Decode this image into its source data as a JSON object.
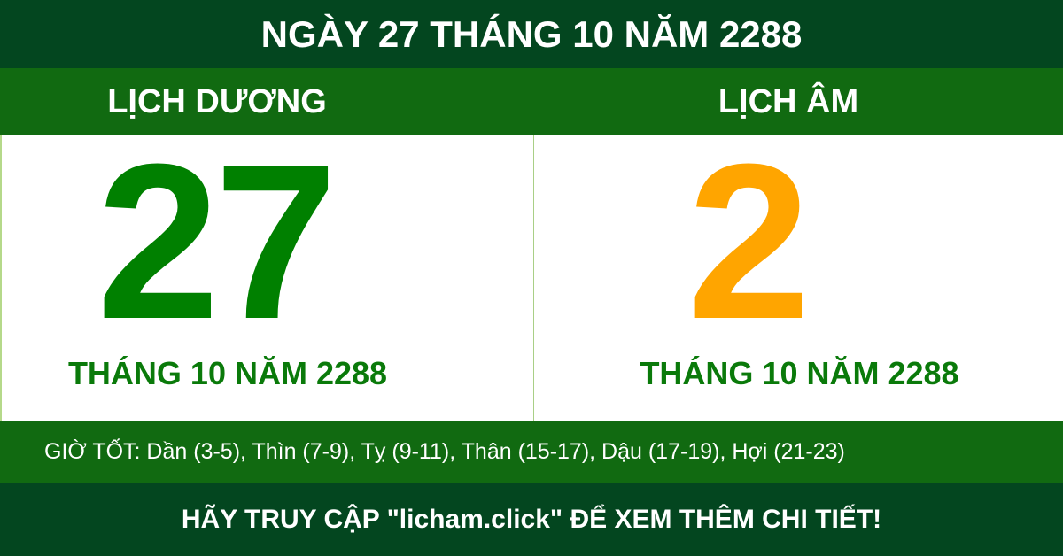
{
  "header": {
    "title": "NGÀY 27 THÁNG 10 NĂM 2288"
  },
  "solar": {
    "label": "LỊCH DƯƠNG",
    "day": "27",
    "month_year": "THÁNG 10 NĂM 2288"
  },
  "lunar": {
    "label": "LỊCH ÂM",
    "day": "2",
    "month_year": "THÁNG 10 NĂM 2288"
  },
  "good_hours": "GIỜ TỐT: Dần (3-5), Thìn (7-9), Tỵ (9-11), Thân (15-17), Dậu (17-19), Hợi (21-23)",
  "footer": "HÃY TRUY CẬP \"licham.click\" ĐỂ XEM THÊM CHI TIẾT!",
  "colors": {
    "dark_green": "#03461f",
    "green": "#116a11",
    "solar_day": "#008000",
    "lunar_day": "#ffa500"
  }
}
